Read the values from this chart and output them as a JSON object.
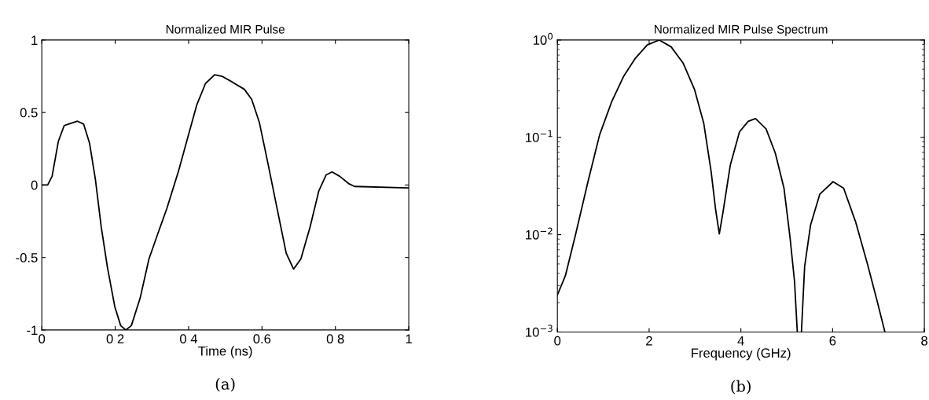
{
  "chart_data": [
    {
      "type": "line",
      "title": "Normalized MIR Pulse",
      "xlabel": "Time (ns)",
      "annotations": [
        "(a)"
      ],
      "xlim": [
        0,
        1
      ],
      "xticks": [
        0,
        {
          "value": 0.2,
          "label": "0 2"
        },
        {
          "value": 0.4,
          "label": "0 4"
        },
        0.6,
        {
          "value": 0.8,
          "label": "0 8"
        },
        1
      ],
      "ylim": [
        -1,
        1
      ],
      "yticks": [
        -1,
        -0.5,
        0,
        0.5,
        1
      ],
      "grid": false,
      "legend": false,
      "series": [
        {
          "color": "#000000",
          "x": [
            0,
            0.016,
            0.028,
            0.045,
            0.061,
            0.073,
            0.097,
            0.114,
            0.13,
            0.146,
            0.162,
            0.179,
            0.199,
            0.215,
            0.229,
            0.244,
            0.268,
            0.292,
            0.317,
            0.341,
            0.373,
            0.398,
            0.422,
            0.446,
            0.471,
            0.491,
            0.519,
            0.552,
            0.572,
            0.593,
            0.617,
            0.641,
            0.666,
            0.686,
            0.706,
            0.731,
            0.755,
            0.775,
            0.791,
            0.812,
            0.836,
            0.852,
            1.0
          ],
          "values": [
            0,
            0,
            0.06,
            0.3,
            0.41,
            0.42,
            0.44,
            0.42,
            0.29,
            0.04,
            -0.29,
            -0.57,
            -0.84,
            -0.97,
            -1.0,
            -0.97,
            -0.78,
            -0.51,
            -0.33,
            -0.16,
            0.1,
            0.33,
            0.55,
            0.7,
            0.76,
            0.75,
            0.71,
            0.66,
            0.59,
            0.43,
            0.14,
            -0.16,
            -0.47,
            -0.58,
            -0.51,
            -0.29,
            -0.04,
            0.07,
            0.09,
            0.06,
            0.01,
            -0.01,
            -0.02
          ]
        }
      ]
    },
    {
      "type": "line",
      "title": "Normalized MIR Pulse Spectrum",
      "xlabel": "Frequency (GHz)",
      "annotations": [
        "(b)"
      ],
      "log": "y",
      "xlim": [
        0,
        8
      ],
      "xticks": [
        0,
        2,
        4,
        6,
        8
      ],
      "ylim": [
        0.001,
        1
      ],
      "yticks": [
        {
          "value": 0.001,
          "label": "10$^{−3}$"
        },
        {
          "value": 0.01,
          "label": "10$^{−2}$"
        },
        {
          "value": 0.1,
          "label": "10$^{−1}$"
        },
        {
          "value": 1,
          "label": "10$^{0}$"
        }
      ],
      "grid": false,
      "legend": false,
      "series": [
        {
          "color": "#000000",
          "x": [
            0,
            0.175,
            0.4,
            0.66,
            0.92,
            1.18,
            1.44,
            1.7,
            1.96,
            2.22,
            2.48,
            2.74,
            2.99,
            3.19,
            3.35,
            3.45,
            3.53,
            3.61,
            3.77,
            3.97,
            4.16,
            4.32,
            4.55,
            4.75,
            4.94,
            5.07,
            5.17,
            5.23,
            5.27,
            5.32,
            5.39,
            5.52,
            5.72,
            6.01,
            6.24,
            6.5,
            6.76,
            6.98,
            7.14
          ],
          "values": [
            0.0024,
            0.0038,
            0.0102,
            0.034,
            0.106,
            0.23,
            0.42,
            0.65,
            0.89,
            1.0,
            0.85,
            0.58,
            0.31,
            0.14,
            0.045,
            0.018,
            0.0102,
            0.017,
            0.052,
            0.114,
            0.146,
            0.156,
            0.122,
            0.069,
            0.03,
            0.0095,
            0.0033,
            0.001,
            null,
            0.001,
            0.0047,
            0.0126,
            0.026,
            0.035,
            0.03,
            0.0136,
            0.005,
            0.002,
            0.001
          ]
        }
      ]
    }
  ]
}
